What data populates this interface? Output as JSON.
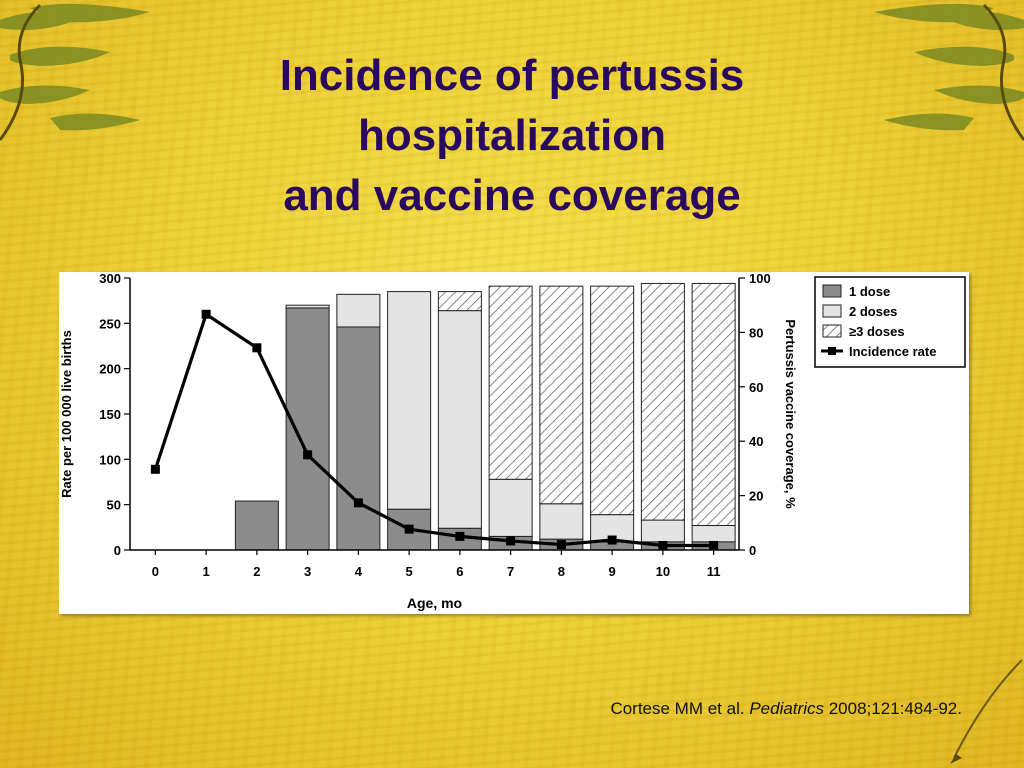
{
  "slide": {
    "title_lines": [
      "Incidence of pertussis",
      "hospitalization",
      "and vaccine coverage"
    ],
    "citation": {
      "authors": "Cortese MM et al.",
      "journal": "Pediatrics",
      "details": "2008;121:484-92."
    },
    "colors": {
      "background": "#ecd032",
      "title": "#2a0a5e",
      "panel": "#ffffff"
    }
  },
  "chart_data": {
    "type": "bar",
    "categories": [
      "0",
      "1",
      "2",
      "3",
      "4",
      "5",
      "6",
      "7",
      "8",
      "9",
      "10",
      "11"
    ],
    "xlabel": "Age, mo",
    "ylabel": "Rate per 100 000 live births",
    "y2label": "Pertussis vaccine coverage, %",
    "ylim": [
      0,
      300
    ],
    "y2lim": [
      0,
      100
    ],
    "yticks": [
      0,
      50,
      100,
      150,
      200,
      250,
      300
    ],
    "y2ticks": [
      0,
      20,
      40,
      60,
      80,
      100
    ],
    "stacked": true,
    "series": [
      {
        "name": "1 dose",
        "axis": "right",
        "style": "dark-gray",
        "values": [
          0,
          0,
          18,
          89,
          82,
          15,
          8,
          5,
          4,
          3,
          3,
          3
        ]
      },
      {
        "name": "2 doses",
        "axis": "right",
        "style": "light-gray",
        "values": [
          0,
          0,
          0,
          1,
          12,
          80,
          80,
          21,
          13,
          10,
          8,
          6
        ]
      },
      {
        "name": "≥3 doses",
        "axis": "right",
        "style": "hatched",
        "values": [
          0,
          0,
          0,
          0,
          0,
          0,
          7,
          71,
          80,
          84,
          87,
          89
        ]
      }
    ],
    "line": {
      "name": "Incidence rate",
      "axis": "left",
      "values": [
        89,
        260,
        223,
        105,
        52,
        23,
        15,
        10,
        6,
        11,
        5,
        5
      ]
    },
    "legend_position": "top-right",
    "grid": false
  }
}
